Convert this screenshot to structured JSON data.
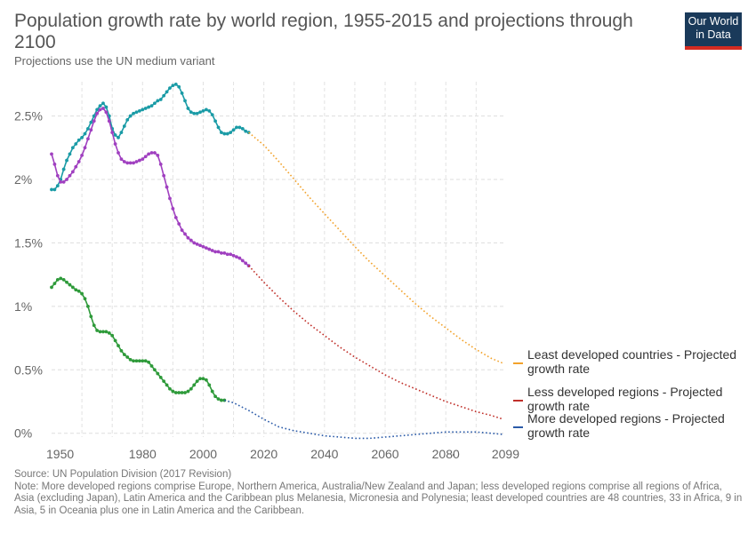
{
  "header": {
    "title": "Population growth rate by world region, 1955-2015 and projections through 2100",
    "subtitle": "Projections use the UN medium variant"
  },
  "logo": {
    "line1": "Our World",
    "line2": "in Data"
  },
  "footer": {
    "source": "Source: UN Population Division (2017 Revision)",
    "note": "Note: More developed regions comprise Europe, Northern America, Australia/New Zealand and Japan; less developed regions comprise all regions of Africa, Asia (excluding Japan), Latin America and the Caribbean plus Melanesia, Micronesia and Polynesia; least developed countries are 48 countries, 33 in Africa, 9 in Asia, 5 in Oceania plus one in Latin America and the Caribbean."
  },
  "chart_data": {
    "type": "line",
    "title": "Population growth rate by world region, 1955-2015 and projections through 2100",
    "subtitle": "Projections use the UN medium variant",
    "xlim": [
      1950,
      2099
    ],
    "ylim": [
      -0.03,
      2.77
    ],
    "x_ticks": [
      1950,
      1980,
      2000,
      2020,
      2040,
      2060,
      2080,
      2099
    ],
    "y_ticks": [
      0,
      0.5,
      1,
      1.5,
      2,
      2.5
    ],
    "y_tick_labels": [
      "0%",
      "0.5%",
      "1%",
      "1.5%",
      "2%",
      "2.5%"
    ],
    "grid": true,
    "legend_position": "right",
    "legend": [
      "Least developed countries - Projected growth rate",
      "Less developed regions - Projected growth rate",
      "More developed regions - Projected growth rate"
    ],
    "colors": {
      "least_hist": "#1a9ba6",
      "least_proj": "#f2a22b",
      "less_hist": "#a040c0",
      "less_proj": "#c0302a",
      "more_hist": "#2e9a3a",
      "more_proj": "#2a5aa8"
    },
    "series": [
      {
        "key": "least_hist",
        "style": "solid",
        "points": [
          [
            1950,
            1.92
          ],
          [
            1951,
            1.92
          ],
          [
            1952,
            1.95
          ],
          [
            1953,
            2.0
          ],
          [
            1954,
            2.08
          ],
          [
            1955,
            2.15
          ],
          [
            1956,
            2.2
          ],
          [
            1957,
            2.25
          ],
          [
            1958,
            2.28
          ],
          [
            1959,
            2.31
          ],
          [
            1960,
            2.33
          ],
          [
            1961,
            2.36
          ],
          [
            1962,
            2.4
          ],
          [
            1963,
            2.45
          ],
          [
            1964,
            2.5
          ],
          [
            1965,
            2.55
          ],
          [
            1966,
            2.58
          ],
          [
            1967,
            2.6
          ],
          [
            1968,
            2.57
          ],
          [
            1969,
            2.5
          ],
          [
            1970,
            2.4
          ],
          [
            1971,
            2.35
          ],
          [
            1972,
            2.33
          ],
          [
            1973,
            2.37
          ],
          [
            1974,
            2.42
          ],
          [
            1975,
            2.47
          ],
          [
            1976,
            2.5
          ],
          [
            1977,
            2.52
          ],
          [
            1978,
            2.53
          ],
          [
            1979,
            2.54
          ],
          [
            1980,
            2.55
          ],
          [
            1981,
            2.56
          ],
          [
            1982,
            2.57
          ],
          [
            1983,
            2.58
          ],
          [
            1984,
            2.6
          ],
          [
            1985,
            2.62
          ],
          [
            1986,
            2.63
          ],
          [
            1987,
            2.66
          ],
          [
            1988,
            2.69
          ],
          [
            1989,
            2.72
          ],
          [
            1990,
            2.74
          ],
          [
            1991,
            2.75
          ],
          [
            1992,
            2.73
          ],
          [
            1993,
            2.68
          ],
          [
            1994,
            2.62
          ],
          [
            1995,
            2.56
          ],
          [
            1996,
            2.53
          ],
          [
            1997,
            2.52
          ],
          [
            1998,
            2.52
          ],
          [
            1999,
            2.53
          ],
          [
            2000,
            2.54
          ],
          [
            2001,
            2.55
          ],
          [
            2002,
            2.54
          ],
          [
            2003,
            2.51
          ],
          [
            2004,
            2.46
          ],
          [
            2005,
            2.41
          ],
          [
            2006,
            2.37
          ],
          [
            2007,
            2.36
          ],
          [
            2008,
            2.36
          ],
          [
            2009,
            2.37
          ],
          [
            2010,
            2.39
          ],
          [
            2011,
            2.41
          ],
          [
            2012,
            2.41
          ],
          [
            2013,
            2.4
          ],
          [
            2014,
            2.38
          ],
          [
            2015,
            2.37
          ]
        ]
      },
      {
        "key": "least_proj",
        "style": "dotted",
        "points": [
          [
            2015,
            2.37
          ],
          [
            2020,
            2.27
          ],
          [
            2025,
            2.14
          ],
          [
            2030,
            2.0
          ],
          [
            2035,
            1.86
          ],
          [
            2040,
            1.73
          ],
          [
            2045,
            1.6
          ],
          [
            2050,
            1.47
          ],
          [
            2055,
            1.35
          ],
          [
            2060,
            1.24
          ],
          [
            2065,
            1.13
          ],
          [
            2070,
            1.02
          ],
          [
            2075,
            0.92
          ],
          [
            2080,
            0.83
          ],
          [
            2085,
            0.74
          ],
          [
            2090,
            0.66
          ],
          [
            2095,
            0.59
          ],
          [
            2099,
            0.55
          ]
        ]
      },
      {
        "key": "less_hist",
        "style": "solid",
        "points": [
          [
            1950,
            2.2
          ],
          [
            1951,
            2.12
          ],
          [
            1952,
            2.03
          ],
          [
            1953,
            1.98
          ],
          [
            1954,
            1.98
          ],
          [
            1955,
            2.0
          ],
          [
            1956,
            2.03
          ],
          [
            1957,
            2.06
          ],
          [
            1958,
            2.1
          ],
          [
            1959,
            2.14
          ],
          [
            1960,
            2.19
          ],
          [
            1961,
            2.25
          ],
          [
            1962,
            2.32
          ],
          [
            1963,
            2.39
          ],
          [
            1964,
            2.46
          ],
          [
            1965,
            2.52
          ],
          [
            1966,
            2.55
          ],
          [
            1967,
            2.56
          ],
          [
            1968,
            2.53
          ],
          [
            1969,
            2.46
          ],
          [
            1970,
            2.37
          ],
          [
            1971,
            2.28
          ],
          [
            1972,
            2.21
          ],
          [
            1973,
            2.16
          ],
          [
            1974,
            2.14
          ],
          [
            1975,
            2.13
          ],
          [
            1976,
            2.13
          ],
          [
            1977,
            2.13
          ],
          [
            1978,
            2.14
          ],
          [
            1979,
            2.15
          ],
          [
            1980,
            2.16
          ],
          [
            1981,
            2.18
          ],
          [
            1982,
            2.2
          ],
          [
            1983,
            2.21
          ],
          [
            1984,
            2.21
          ],
          [
            1985,
            2.19
          ],
          [
            1986,
            2.12
          ],
          [
            1987,
            2.03
          ],
          [
            1988,
            1.94
          ],
          [
            1989,
            1.85
          ],
          [
            1990,
            1.77
          ],
          [
            1991,
            1.7
          ],
          [
            1992,
            1.65
          ],
          [
            1993,
            1.6
          ],
          [
            1994,
            1.57
          ],
          [
            1995,
            1.54
          ],
          [
            1996,
            1.52
          ],
          [
            1997,
            1.5
          ],
          [
            1998,
            1.49
          ],
          [
            1999,
            1.48
          ],
          [
            2000,
            1.47
          ],
          [
            2001,
            1.46
          ],
          [
            2002,
            1.45
          ],
          [
            2003,
            1.44
          ],
          [
            2004,
            1.43
          ],
          [
            2005,
            1.43
          ],
          [
            2006,
            1.42
          ],
          [
            2007,
            1.42
          ],
          [
            2008,
            1.41
          ],
          [
            2009,
            1.41
          ],
          [
            2010,
            1.4
          ],
          [
            2011,
            1.39
          ],
          [
            2012,
            1.38
          ],
          [
            2013,
            1.36
          ],
          [
            2014,
            1.34
          ],
          [
            2015,
            1.32
          ]
        ]
      },
      {
        "key": "less_proj",
        "style": "dotted",
        "points": [
          [
            2015,
            1.32
          ],
          [
            2020,
            1.19
          ],
          [
            2025,
            1.07
          ],
          [
            2030,
            0.96
          ],
          [
            2035,
            0.86
          ],
          [
            2040,
            0.77
          ],
          [
            2045,
            0.68
          ],
          [
            2050,
            0.6
          ],
          [
            2055,
            0.53
          ],
          [
            2060,
            0.46
          ],
          [
            2065,
            0.4
          ],
          [
            2070,
            0.35
          ],
          [
            2075,
            0.3
          ],
          [
            2080,
            0.25
          ],
          [
            2085,
            0.21
          ],
          [
            2090,
            0.17
          ],
          [
            2095,
            0.14
          ],
          [
            2099,
            0.11
          ]
        ]
      },
      {
        "key": "more_hist",
        "style": "solid",
        "points": [
          [
            1950,
            1.15
          ],
          [
            1951,
            1.18
          ],
          [
            1952,
            1.21
          ],
          [
            1953,
            1.22
          ],
          [
            1954,
            1.21
          ],
          [
            1955,
            1.19
          ],
          [
            1956,
            1.17
          ],
          [
            1957,
            1.15
          ],
          [
            1958,
            1.13
          ],
          [
            1959,
            1.12
          ],
          [
            1960,
            1.1
          ],
          [
            1961,
            1.06
          ],
          [
            1962,
            1.0
          ],
          [
            1963,
            0.92
          ],
          [
            1964,
            0.85
          ],
          [
            1965,
            0.81
          ],
          [
            1966,
            0.8
          ],
          [
            1967,
            0.8
          ],
          [
            1968,
            0.8
          ],
          [
            1969,
            0.79
          ],
          [
            1970,
            0.77
          ],
          [
            1971,
            0.73
          ],
          [
            1972,
            0.69
          ],
          [
            1973,
            0.65
          ],
          [
            1974,
            0.62
          ],
          [
            1975,
            0.6
          ],
          [
            1976,
            0.58
          ],
          [
            1977,
            0.57
          ],
          [
            1978,
            0.57
          ],
          [
            1979,
            0.57
          ],
          [
            1980,
            0.57
          ],
          [
            1981,
            0.57
          ],
          [
            1982,
            0.56
          ],
          [
            1983,
            0.53
          ],
          [
            1984,
            0.5
          ],
          [
            1985,
            0.47
          ],
          [
            1986,
            0.44
          ],
          [
            1987,
            0.41
          ],
          [
            1988,
            0.38
          ],
          [
            1989,
            0.35
          ],
          [
            1990,
            0.33
          ],
          [
            1991,
            0.32
          ],
          [
            1992,
            0.32
          ],
          [
            1993,
            0.32
          ],
          [
            1994,
            0.32
          ],
          [
            1995,
            0.33
          ],
          [
            1996,
            0.35
          ],
          [
            1997,
            0.38
          ],
          [
            1998,
            0.41
          ],
          [
            1999,
            0.43
          ],
          [
            2000,
            0.43
          ],
          [
            2001,
            0.42
          ],
          [
            2002,
            0.38
          ],
          [
            2003,
            0.33
          ],
          [
            2004,
            0.29
          ],
          [
            2005,
            0.27
          ],
          [
            2006,
            0.26
          ],
          [
            2007,
            0.26
          ]
        ]
      },
      {
        "key": "more_proj",
        "style": "dotted",
        "points": [
          [
            2007,
            0.26
          ],
          [
            2010,
            0.24
          ],
          [
            2015,
            0.18
          ],
          [
            2020,
            0.11
          ],
          [
            2025,
            0.05
          ],
          [
            2030,
            0.02
          ],
          [
            2035,
            0.0
          ],
          [
            2040,
            -0.02
          ],
          [
            2045,
            -0.03
          ],
          [
            2050,
            -0.04
          ],
          [
            2055,
            -0.04
          ],
          [
            2060,
            -0.03
          ],
          [
            2065,
            -0.02
          ],
          [
            2070,
            -0.01
          ],
          [
            2075,
            0.0
          ],
          [
            2080,
            0.01
          ],
          [
            2085,
            0.01
          ],
          [
            2090,
            0.01
          ],
          [
            2095,
            0.0
          ],
          [
            2099,
            -0.01
          ]
        ]
      }
    ]
  }
}
